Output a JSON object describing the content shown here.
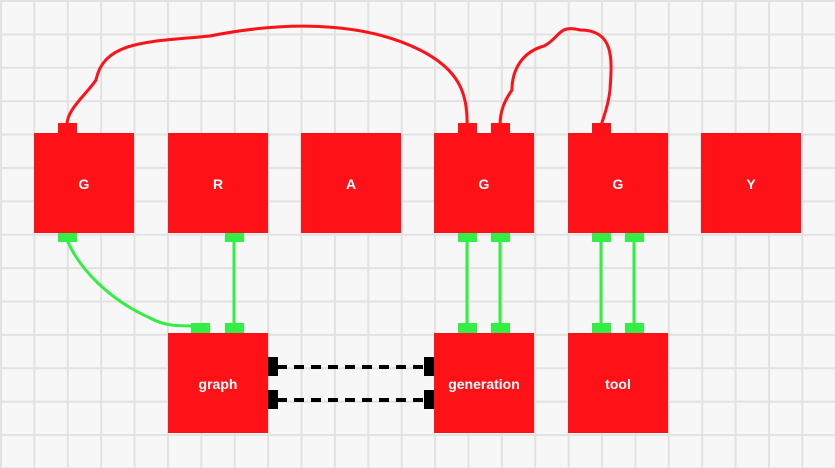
{
  "diagram": {
    "top_row": [
      {
        "label": "G"
      },
      {
        "label": "R"
      },
      {
        "label": "A"
      },
      {
        "label": "G"
      },
      {
        "label": "G"
      },
      {
        "label": "Y"
      }
    ],
    "bottom_row": [
      {
        "label": "graph"
      },
      {
        "label": "generation"
      },
      {
        "label": "tool"
      }
    ],
    "colors": {
      "node_fill": "#ff1118",
      "red_wire": "#ff1118",
      "green_wire": "#33ee44",
      "dashed_link": "#000000",
      "grid": "#e2e2e2",
      "background": "#f7f7f7"
    }
  }
}
